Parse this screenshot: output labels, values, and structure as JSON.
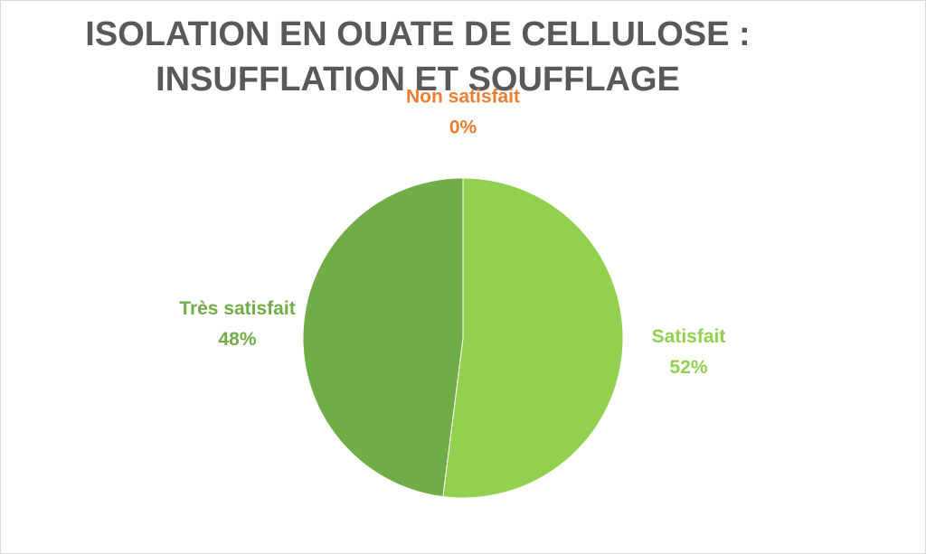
{
  "chart_data": {
    "type": "pie",
    "title": [
      "ISOLATION EN OUATE DE CELLULOSE :",
      "INSUFFLATION ET SOUFFLAGE"
    ],
    "categories": [
      "Non satisfait",
      "Satisfait",
      "Très satisfait"
    ],
    "values": [
      0,
      52,
      48
    ],
    "value_labels": [
      "0%",
      "52%",
      "48%"
    ],
    "colors": [
      "#ed7d31",
      "#92d050",
      "#70ad47"
    ]
  }
}
